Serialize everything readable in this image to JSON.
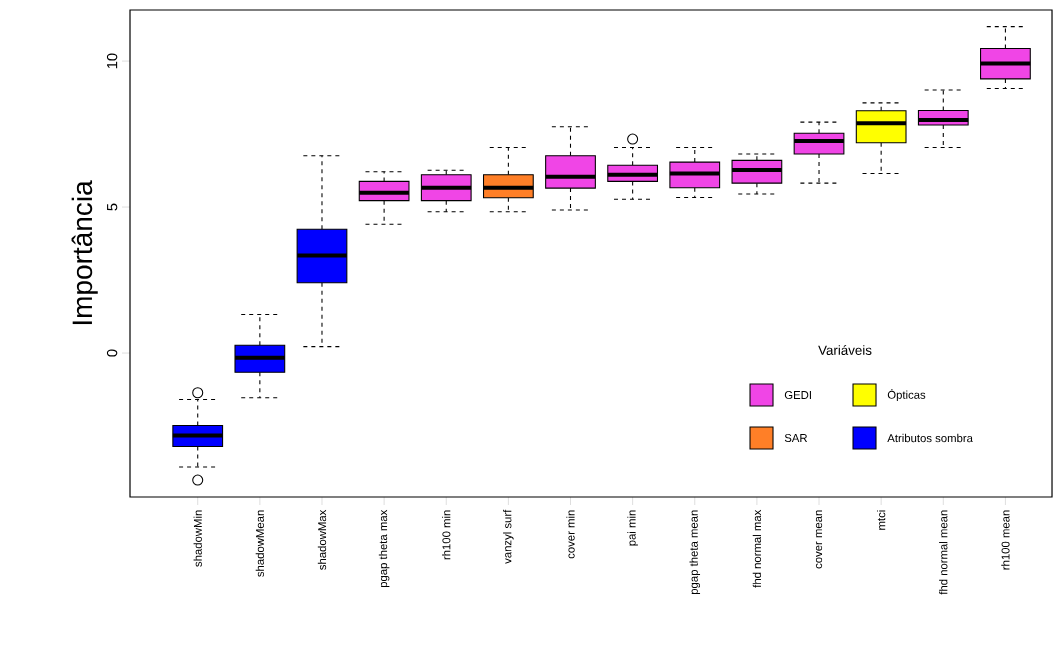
{
  "chart_data": {
    "type": "box",
    "ylabel": "Importância",
    "legend_title": "Variáveis",
    "legend": "bottom right",
    "categories": [
      "shadowMin",
      "shadowMean",
      "shadowMax",
      "pgap theta max",
      "rh100 min",
      "vanzyl surf",
      "cover min",
      "pai min",
      "pgap theta mean",
      "fhd normal max",
      "cover mean",
      "mtci",
      "fhd normal mean",
      "rh100 mean"
    ],
    "ylim": [
      -4.93,
      11.75
    ],
    "yticks": [
      0,
      5,
      10
    ],
    "series": [
      {
        "name": "GEDI",
        "color": "#f045e6",
        "boxes": [
          null,
          null,
          null,
          {
            "low": 4.41,
            "q1": 5.22,
            "median": 5.49,
            "q3": 5.88,
            "high": 6.21
          },
          {
            "low": 4.84,
            "q1": 5.22,
            "median": 5.66,
            "q3": 6.11,
            "high": 6.26
          },
          null,
          {
            "low": 4.9,
            "q1": 5.65,
            "median": 6.04,
            "q3": 6.76,
            "high": 7.75
          },
          {
            "low": 5.27,
            "q1": 5.88,
            "median": 6.11,
            "q3": 6.43,
            "high": 7.04,
            "outliers": [
              7.33
            ]
          },
          {
            "low": 5.33,
            "q1": 5.66,
            "median": 6.15,
            "q3": 6.54,
            "high": 7.04
          },
          {
            "low": 5.45,
            "q1": 5.82,
            "median": 6.27,
            "q3": 6.6,
            "high": 6.82
          },
          {
            "low": 5.82,
            "q1": 6.82,
            "median": 7.26,
            "q3": 7.53,
            "high": 7.91
          },
          null,
          {
            "low": 7.04,
            "q1": 7.81,
            "median": 7.98,
            "q3": 8.31,
            "high": 9.01
          },
          {
            "low": 9.06,
            "q1": 9.39,
            "median": 9.92,
            "q3": 10.43,
            "high": 11.18
          }
        ]
      },
      {
        "name": "Ópticas",
        "color": "#ffff00",
        "boxes": [
          null,
          null,
          null,
          null,
          null,
          null,
          null,
          null,
          null,
          null,
          null,
          {
            "low": 6.15,
            "q1": 7.2,
            "median": 7.87,
            "q3": 8.3,
            "high": 8.57
          },
          null,
          null
        ]
      },
      {
        "name": "SAR",
        "color": "#ff7f27",
        "boxes": [
          null,
          null,
          null,
          null,
          null,
          {
            "low": 4.84,
            "q1": 5.32,
            "median": 5.66,
            "q3": 6.11,
            "high": 7.04
          },
          null,
          null,
          null,
          null,
          null,
          null,
          null,
          null
        ]
      },
      {
        "name": "Atributos sombra",
        "color": "#0000ff",
        "boxes": [
          {
            "low": -3.9,
            "q1": -3.2,
            "median": -2.82,
            "q3": -2.48,
            "high": -1.59,
            "outliers": [
              -1.36,
              -4.35
            ]
          },
          {
            "low": -1.53,
            "q1": -0.66,
            "median": -0.16,
            "q3": 0.27,
            "high": 1.32
          },
          {
            "low": 0.22,
            "q1": 2.41,
            "median": 3.34,
            "q3": 4.24,
            "high": 6.76
          },
          null,
          null,
          null,
          null,
          null,
          null,
          null,
          null,
          null,
          null,
          null
        ]
      }
    ]
  }
}
